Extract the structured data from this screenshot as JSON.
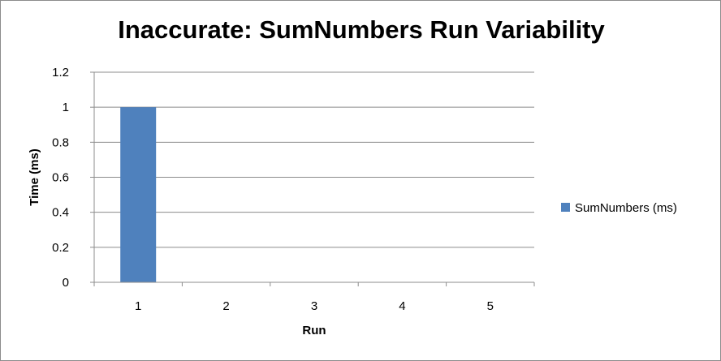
{
  "chart_data": {
    "type": "bar",
    "title": "Inaccurate: SumNumbers Run Variability",
    "xlabel": "Run",
    "ylabel": "Time (ms)",
    "categories": [
      "1",
      "2",
      "3",
      "4",
      "5"
    ],
    "series": [
      {
        "name": "SumNumbers (ms)",
        "values": [
          1,
          0,
          0,
          0,
          0
        ],
        "color": "#4f81bd"
      }
    ],
    "ylim": [
      0,
      1.2
    ],
    "yticks": [
      "0",
      "0.2",
      "0.4",
      "0.6",
      "0.8",
      "1",
      "1.2"
    ],
    "grid": true,
    "legend_position": "right",
    "colors": {
      "gridline": "#8c8c8c",
      "axis": "#8c8c8c"
    }
  }
}
